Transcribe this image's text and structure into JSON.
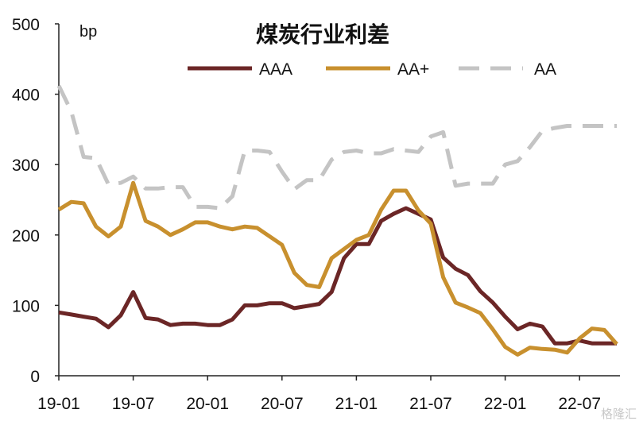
{
  "chart_data": {
    "type": "line",
    "title": "煤炭行业利差",
    "ylabel": "bp",
    "ylim": [
      0,
      500
    ],
    "yticks": [
      0,
      100,
      200,
      300,
      400,
      500
    ],
    "xticks": [
      "19-01",
      "19-07",
      "20-01",
      "20-07",
      "21-01",
      "21-07",
      "22-01",
      "22-07"
    ],
    "grid": false,
    "legend_position": "top",
    "series": [
      {
        "name": "AAA",
        "color": "#6b2626",
        "dash": "solid",
        "values": [
          90,
          87,
          84,
          81,
          69,
          86,
          119,
          82,
          80,
          72,
          74,
          74,
          72,
          72,
          80,
          100,
          100,
          103,
          103,
          96,
          99,
          102,
          119,
          167,
          187,
          187,
          220,
          230,
          238,
          230,
          222,
          168,
          152,
          143,
          120,
          104,
          84,
          66,
          74,
          70,
          46,
          46,
          50,
          46,
          46,
          46
        ]
      },
      {
        "name": "AA+",
        "color": "#c8902e",
        "dash": "solid",
        "values": [
          236,
          247,
          245,
          212,
          198,
          212,
          274,
          220,
          212,
          200,
          208,
          218,
          218,
          212,
          208,
          212,
          210,
          198,
          186,
          146,
          129,
          126,
          167,
          180,
          193,
          200,
          236,
          263,
          263,
          235,
          216,
          140,
          104,
          97,
          89,
          66,
          41,
          30,
          40,
          38,
          37,
          33,
          53,
          67,
          65,
          45
        ]
      },
      {
        "name": "AA",
        "color": "#c4c4c4",
        "dash": "dashed",
        "values": [
          412,
          376,
          311,
          309,
          272,
          274,
          283,
          266,
          266,
          268,
          268,
          240,
          240,
          238,
          255,
          320,
          320,
          318,
          290,
          265,
          278,
          278,
          307,
          318,
          320,
          316,
          316,
          322,
          320,
          318,
          340,
          346,
          270,
          273,
          273,
          273,
          300,
          305,
          325,
          348,
          352,
          355,
          355,
          355,
          355,
          355
        ]
      }
    ]
  },
  "watermark_text": "格隆汇"
}
